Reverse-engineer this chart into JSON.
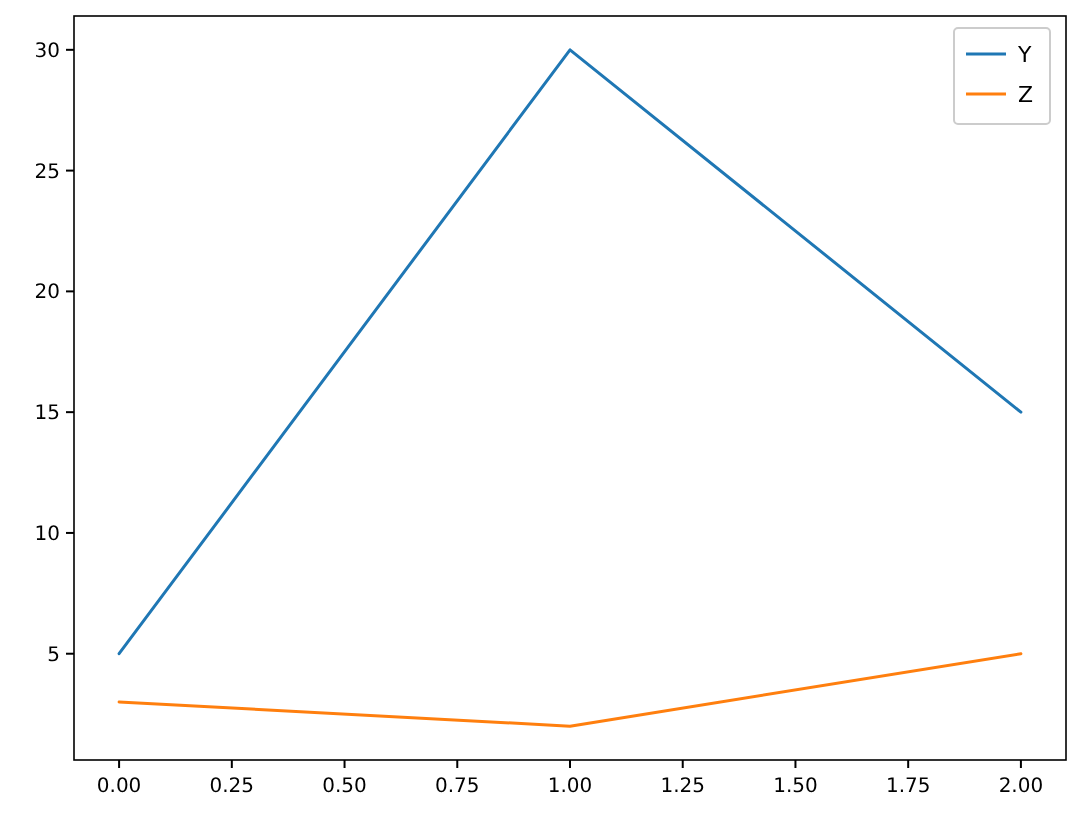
{
  "chart_data": {
    "type": "line",
    "x": [
      0,
      1,
      2
    ],
    "series": [
      {
        "name": "Y",
        "color": "#1f77b4",
        "values": [
          5,
          30,
          15
        ]
      },
      {
        "name": "Z",
        "color": "#ff7f0e",
        "values": [
          3,
          2,
          5
        ]
      }
    ],
    "xlim": [
      -0.1,
      2.1
    ],
    "xticks": [
      {
        "value": 0,
        "label": "0.00"
      },
      {
        "value": 0.25,
        "label": "0.25"
      },
      {
        "value": 0.5,
        "label": "0.50"
      },
      {
        "value": 0.75,
        "label": "0.75"
      },
      {
        "value": 1,
        "label": "1.00"
      },
      {
        "value": 1.25,
        "label": "1.25"
      },
      {
        "value": 1.5,
        "label": "1.50"
      },
      {
        "value": 1.75,
        "label": "1.75"
      },
      {
        "value": 2,
        "label": "2.00"
      }
    ],
    "ylim": [
      0.6,
      31.4
    ],
    "yticks": [
      5,
      10,
      15,
      20,
      25,
      30
    ],
    "legend": "top right",
    "grid": false,
    "marker": "none",
    "line_style": "solid"
  }
}
